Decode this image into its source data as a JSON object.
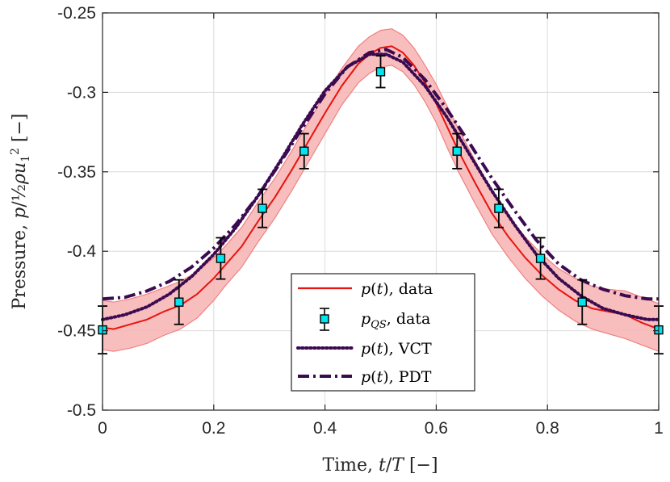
{
  "chart_data": {
    "type": "line",
    "xlabel": "Time, t/T [−]",
    "ylabel": "Pressure, p/½ρu₁² [−]",
    "xlim": [
      0,
      1
    ],
    "ylim": [
      -0.5,
      -0.25
    ],
    "grid": true,
    "legend_placement": "bottom-center",
    "x_ticks": [
      "0",
      "0.2",
      "0.4",
      "0.6",
      "0.8",
      "1"
    ],
    "y_ticks": [
      "-0.5",
      "-0.45",
      "-0.4",
      "-0.35",
      "-0.3",
      "-0.25"
    ],
    "x_tick_values": [
      0,
      0.2,
      0.4,
      0.6,
      0.8,
      1
    ],
    "y_tick_values": [
      -0.5,
      -0.45,
      -0.4,
      -0.35,
      -0.3,
      -0.25
    ],
    "colors": {
      "data": "#e8130f",
      "band_fill": "#f7b3b3",
      "band_edge": "#f08080",
      "marker_fill": "#00e5ee",
      "model": "#3c0a50"
    },
    "series": [
      {
        "name": "p(t), data",
        "style": "solid",
        "x": [
          0,
          0.02,
          0.05,
          0.08,
          0.11,
          0.14,
          0.17,
          0.2,
          0.22,
          0.25,
          0.28,
          0.31,
          0.34,
          0.37,
          0.4,
          0.43,
          0.46,
          0.48,
          0.5,
          0.52,
          0.54,
          0.56,
          0.58,
          0.6,
          0.62,
          0.64,
          0.67,
          0.7,
          0.73,
          0.76,
          0.79,
          0.82,
          0.85,
          0.88,
          0.91,
          0.94,
          0.97,
          1
        ],
        "y": [
          -0.448,
          -0.449,
          -0.446,
          -0.443,
          -0.438,
          -0.434,
          -0.427,
          -0.417,
          -0.409,
          -0.397,
          -0.381,
          -0.366,
          -0.349,
          -0.331,
          -0.313,
          -0.296,
          -0.282,
          -0.276,
          -0.272,
          -0.271,
          -0.275,
          -0.283,
          -0.294,
          -0.307,
          -0.322,
          -0.337,
          -0.357,
          -0.376,
          -0.391,
          -0.404,
          -0.415,
          -0.424,
          -0.431,
          -0.436,
          -0.438,
          -0.44,
          -0.445,
          -0.449
        ]
      },
      {
        "name": "p_QS, data",
        "style": "markers",
        "x": [
          0,
          0.1375,
          0.2125,
          0.2875,
          0.3625,
          0.5,
          0.6375,
          0.7125,
          0.7875,
          0.8625,
          1
        ],
        "y": [
          -0.4495,
          -0.432,
          -0.4045,
          -0.373,
          -0.337,
          -0.287,
          -0.337,
          -0.373,
          -0.4045,
          -0.432,
          -0.4495
        ],
        "error": [
          0.015,
          0.014,
          0.013,
          0.012,
          0.011,
          0.01,
          0.011,
          0.012,
          0.013,
          0.014,
          0.015
        ]
      },
      {
        "name": "p(t), VCT",
        "style": "dotted",
        "x": [
          0,
          0.04,
          0.08,
          0.12,
          0.16,
          0.2,
          0.24,
          0.28,
          0.32,
          0.36,
          0.4,
          0.44,
          0.48,
          0.51,
          0.54,
          0.58,
          0.62,
          0.66,
          0.7,
          0.74,
          0.78,
          0.82,
          0.86,
          0.9,
          0.94,
          0.98,
          1
        ],
        "y": [
          -0.443,
          -0.44,
          -0.435,
          -0.427,
          -0.416,
          -0.402,
          -0.385,
          -0.365,
          -0.343,
          -0.32,
          -0.299,
          -0.284,
          -0.276,
          -0.276,
          -0.281,
          -0.296,
          -0.316,
          -0.339,
          -0.362,
          -0.383,
          -0.402,
          -0.417,
          -0.428,
          -0.436,
          -0.44,
          -0.443,
          -0.443
        ]
      },
      {
        "name": "p(t), PDT",
        "style": "dashdot",
        "x": [
          0,
          0.04,
          0.08,
          0.12,
          0.16,
          0.2,
          0.24,
          0.28,
          0.32,
          0.36,
          0.4,
          0.44,
          0.48,
          0.51,
          0.54,
          0.58,
          0.62,
          0.66,
          0.7,
          0.74,
          0.78,
          0.82,
          0.86,
          0.9,
          0.94,
          0.98,
          1
        ],
        "y": [
          -0.43,
          -0.429,
          -0.425,
          -0.419,
          -0.41,
          -0.398,
          -0.383,
          -0.365,
          -0.344,
          -0.322,
          -0.301,
          -0.284,
          -0.275,
          -0.273,
          -0.278,
          -0.292,
          -0.311,
          -0.332,
          -0.354,
          -0.374,
          -0.393,
          -0.408,
          -0.418,
          -0.424,
          -0.428,
          -0.43,
          -0.43
        ]
      }
    ],
    "band": {
      "x": [
        0,
        0.02,
        0.05,
        0.08,
        0.11,
        0.14,
        0.17,
        0.2,
        0.22,
        0.25,
        0.28,
        0.31,
        0.34,
        0.37,
        0.4,
        0.43,
        0.46,
        0.48,
        0.5,
        0.52,
        0.54,
        0.56,
        0.58,
        0.6,
        0.62,
        0.64,
        0.67,
        0.7,
        0.73,
        0.76,
        0.79,
        0.82,
        0.85,
        0.88,
        0.91,
        0.94,
        0.97,
        1
      ],
      "upper": [
        -0.431,
        -0.432,
        -0.43,
        -0.427,
        -0.423,
        -0.419,
        -0.413,
        -0.404,
        -0.397,
        -0.385,
        -0.369,
        -0.354,
        -0.337,
        -0.319,
        -0.301,
        -0.285,
        -0.271,
        -0.265,
        -0.261,
        -0.26,
        -0.264,
        -0.272,
        -0.283,
        -0.295,
        -0.309,
        -0.323,
        -0.343,
        -0.362,
        -0.378,
        -0.391,
        -0.402,
        -0.411,
        -0.417,
        -0.422,
        -0.424,
        -0.425,
        -0.429,
        -0.433
      ],
      "lower": [
        -0.462,
        -0.463,
        -0.461,
        -0.458,
        -0.453,
        -0.449,
        -0.442,
        -0.431,
        -0.422,
        -0.41,
        -0.394,
        -0.379,
        -0.362,
        -0.344,
        -0.326,
        -0.308,
        -0.294,
        -0.288,
        -0.284,
        -0.283,
        -0.287,
        -0.295,
        -0.306,
        -0.319,
        -0.335,
        -0.35,
        -0.37,
        -0.389,
        -0.404,
        -0.417,
        -0.428,
        -0.437,
        -0.444,
        -0.449,
        -0.452,
        -0.455,
        -0.459,
        -0.463
      ]
    },
    "legend": [
      {
        "label": "p(t), data",
        "style": "solid"
      },
      {
        "label": "p_QS, data",
        "style": "markers"
      },
      {
        "label": "p(t), VCT",
        "style": "dotted"
      },
      {
        "label": "p(t), PDT",
        "style": "dashdot"
      }
    ]
  }
}
